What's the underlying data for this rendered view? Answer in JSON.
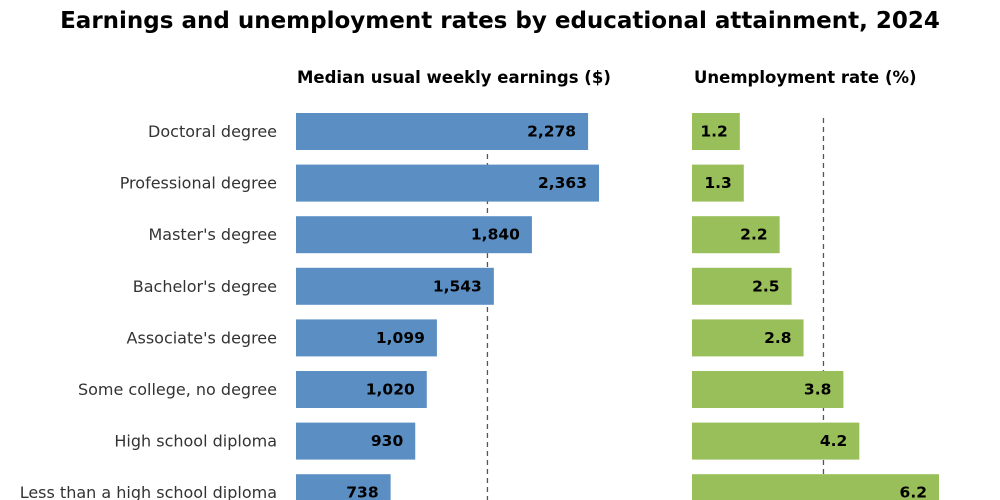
{
  "chart_data": {
    "type": "bar",
    "title": "Earnings and unemployment rates by educational attainment, 2024",
    "categories": [
      "Doctoral degree",
      "Professional degree",
      "Master's degree",
      "Bachelor's degree",
      "Associate's degree",
      "Some college, no degree",
      "High school diploma",
      "Less than a high school diploma"
    ],
    "panels": [
      {
        "name": "Median usual weekly earnings ($)",
        "values": [
          2278,
          2363,
          1840,
          1543,
          1099,
          1020,
          930,
          738
        ],
        "value_labels": [
          "2,278",
          "2,363",
          "1,840",
          "1,543",
          "1,099",
          "1,020",
          "930",
          "738"
        ],
        "reference_line": 1493,
        "color": "#5b8fc3",
        "xlim": [
          0,
          2950
        ]
      },
      {
        "name": "Unemployment rate (%)",
        "values": [
          1.2,
          1.3,
          2.2,
          2.5,
          2.8,
          3.8,
          4.2,
          6.2
        ],
        "value_labels": [
          "1.2",
          "1.3",
          "2.2",
          "2.5",
          "2.8",
          "3.8",
          "4.2",
          "6.2"
        ],
        "reference_line": 3.3,
        "color": "#99bf5a",
        "xlim": [
          0,
          7.5
        ]
      }
    ]
  }
}
